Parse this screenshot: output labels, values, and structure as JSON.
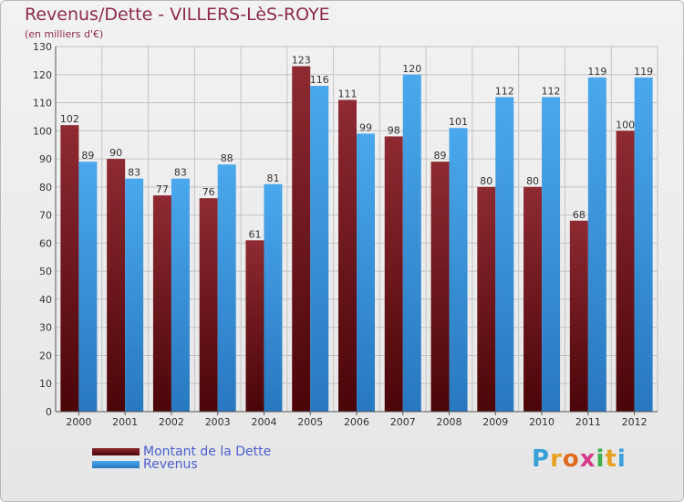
{
  "header": {
    "title": "Revenus/Dette - VILLERS-LèS-ROYE",
    "subtitle": "(en milliers d'€)"
  },
  "chart_data": {
    "type": "bar",
    "categories": [
      "2000",
      "2001",
      "2002",
      "2003",
      "2004",
      "2005",
      "2006",
      "2007",
      "2008",
      "2009",
      "2010",
      "2011",
      "2012"
    ],
    "series": [
      {
        "name": "Montant de la Dette",
        "color": "#7a1a22",
        "values": [
          102,
          90,
          77,
          76,
          61,
          123,
          111,
          98,
          89,
          80,
          80,
          68,
          100
        ]
      },
      {
        "name": "Revenus",
        "color": "#3d9be0",
        "values": [
          89,
          83,
          83,
          88,
          81,
          116,
          99,
          120,
          101,
          112,
          112,
          119,
          119
        ]
      }
    ],
    "ylim": [
      0,
      130
    ],
    "yticks": [
      0,
      10,
      20,
      30,
      40,
      50,
      60,
      70,
      80,
      90,
      100,
      110,
      120,
      130
    ],
    "grid": true,
    "legend_position": "bottom-left"
  },
  "legend": {
    "items": [
      {
        "label": "Montant de la Dette",
        "color": "#7a1a22"
      },
      {
        "label": "Revenus",
        "color": "#3d9be0"
      }
    ]
  },
  "logo": {
    "letters": [
      "P",
      "r",
      "o",
      "x",
      "i",
      "t",
      "i"
    ],
    "colors": [
      "#3aa0d8",
      "#e8a020",
      "#e06a1e",
      "#d83a8a",
      "#3fb04a",
      "#e8a020",
      "#3aa0d8"
    ]
  }
}
